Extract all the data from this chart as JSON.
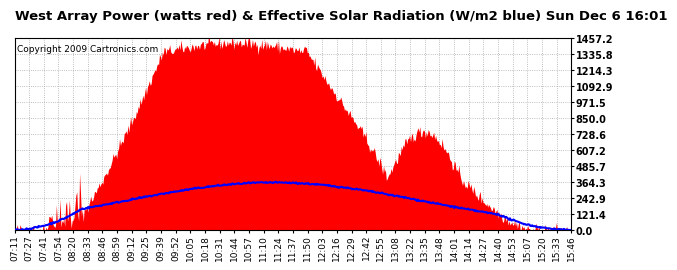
{
  "title": "West Array Power (watts red) & Effective Solar Radiation (W/m2 blue) Sun Dec 6 16:01",
  "copyright": "Copyright 2009 Cartronics.com",
  "bg_color": "#ffffff",
  "plot_bg_color": "#ffffff",
  "grid_color": "#aaaaaa",
  "red_fill_color": "#ff0000",
  "blue_line_color": "#0000ff",
  "y_max": 1457.2,
  "y_min": 0.0,
  "y_ticks": [
    0.0,
    121.4,
    242.9,
    364.3,
    485.7,
    607.2,
    728.6,
    850.0,
    971.5,
    1092.9,
    1214.3,
    1335.8,
    1457.2
  ],
  "y_tick_labels": [
    "0.0",
    "121.4",
    "242.9",
    "364.3",
    "485.7",
    "607.2",
    "728.6",
    "850.0",
    "971.5",
    "1092.9",
    "1214.3",
    "1335.8",
    "1457.2"
  ],
  "x_tick_labels": [
    "07:11",
    "07:27",
    "07:41",
    "07:54",
    "08:20",
    "08:33",
    "08:46",
    "08:59",
    "09:12",
    "09:25",
    "09:39",
    "09:52",
    "10:05",
    "10:18",
    "10:31",
    "10:44",
    "10:57",
    "11:10",
    "11:24",
    "11:37",
    "11:50",
    "12:03",
    "12:16",
    "12:29",
    "12:42",
    "12:55",
    "13:08",
    "13:22",
    "13:35",
    "13:48",
    "14:01",
    "14:14",
    "14:27",
    "14:40",
    "14:53",
    "15:07",
    "15:20",
    "15:33",
    "15:46"
  ],
  "title_fontsize": 9.5,
  "copyright_fontsize": 6.5,
  "tick_fontsize": 6.5,
  "y_tick_fontsize": 7
}
